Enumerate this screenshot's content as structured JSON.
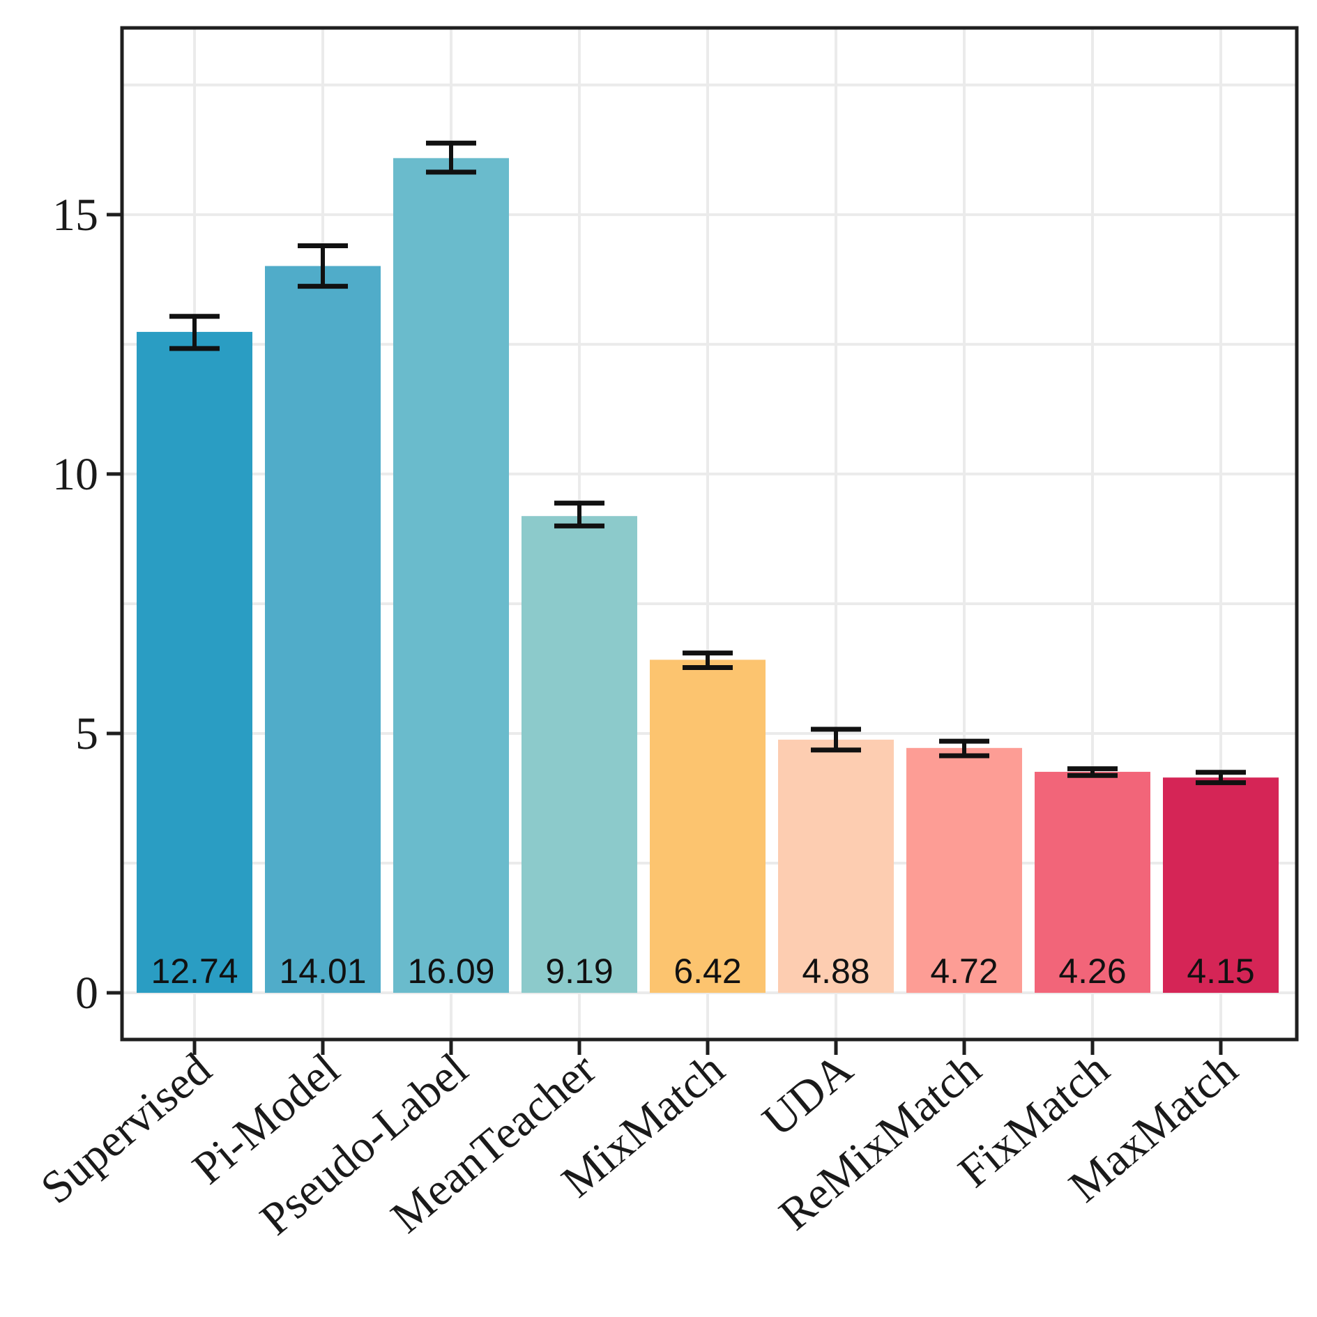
{
  "chart_data": {
    "type": "bar",
    "title": "",
    "xlabel": "",
    "ylabel": "",
    "categories": [
      "Supervised",
      "Pi-Model",
      "Pseudo-Label",
      "MeanTeacher",
      "MixMatch",
      "UDA",
      "ReMixMatch",
      "FixMatch",
      "MaxMatch"
    ],
    "values": [
      12.74,
      14.01,
      16.09,
      9.19,
      6.42,
      4.88,
      4.72,
      4.26,
      4.15
    ],
    "value_labels": [
      "12.74",
      "14.01",
      "16.09",
      "9.19",
      "6.42",
      "4.88",
      "4.72",
      "4.26",
      "4.15"
    ],
    "error_low": [
      12.42,
      13.62,
      15.82,
      9.0,
      6.27,
      4.68,
      4.57,
      4.19,
      4.05
    ],
    "error_high": [
      13.04,
      14.4,
      16.38,
      9.44,
      6.55,
      5.08,
      4.85,
      4.32,
      4.25
    ],
    "colors": [
      "#2a9dc3",
      "#50acc9",
      "#6abbcc",
      "#8ccacb",
      "#fcc46f",
      "#fdcdb1",
      "#fd9d95",
      "#f26579",
      "#d52556"
    ],
    "ylim": [
      -0.9,
      18.6
    ],
    "yticks": [
      0,
      5,
      10,
      15
    ],
    "ytick_labels": [
      "0",
      "5",
      "10",
      "15"
    ],
    "grid": true,
    "legend": "none"
  }
}
